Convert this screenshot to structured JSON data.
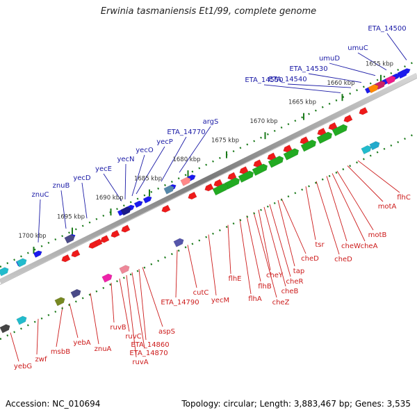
{
  "title": "Erwinia tasmaniensis Et1/99, complete genome",
  "accession": "Accession: NC_010694",
  "summary": "Topology: circular; Length: 3,883,467 bp; Genes: 3,535",
  "ruler": [
    {
      "label": "1655 kbp",
      "kbp": 1655
    },
    {
      "label": "1660 kbp",
      "kbp": 1660
    },
    {
      "label": "1665 kbp",
      "kbp": 1665
    },
    {
      "label": "1670 kbp",
      "kbp": 1670
    },
    {
      "label": "1675 kbp",
      "kbp": 1675
    },
    {
      "label": "1680 kbp",
      "kbp": 1680
    },
    {
      "label": "1685 kbp",
      "kbp": 1685
    },
    {
      "label": "1690 kbp",
      "kbp": 1690
    },
    {
      "label": "1695 kbp",
      "kbp": 1695
    },
    {
      "label": "1700 kbp",
      "kbp": 1700
    }
  ],
  "upper_genes": [
    "ETA_14500",
    "umuC",
    "umuD",
    "ETA_14530",
    "ETA_14540",
    "ETA_14550",
    "argS",
    "ETA_14770",
    "yecP",
    "yecO",
    "yecN",
    "yecE",
    "yecD",
    "znuB",
    "znuC"
  ],
  "lower_genes": [
    "flhC",
    "motA",
    "motB",
    "cheA",
    "cheW",
    "cheD",
    "tsr",
    "cheD",
    "tap",
    "cheR",
    "cheB",
    "cheY",
    "cheZ",
    "flhB",
    "flhA",
    "flhE",
    "yecM",
    "cutC",
    "ETA_14790",
    "aspS",
    "ETA_14860",
    "ETA_14870",
    "ruvA",
    "ruvC",
    "ruvB",
    "znuA",
    "yebA",
    "msbB",
    "zwf",
    "yebG"
  ],
  "colors": {
    "upper_label": "#1a1aa6",
    "lower_label": "#cc1a1a",
    "backbone": "#8a8a8a",
    "ruler": "#1a7a1a",
    "forward_gene": "#1a1aee",
    "reverse_gene": "#ee1a1a",
    "rna_gene": "#22aa22"
  }
}
